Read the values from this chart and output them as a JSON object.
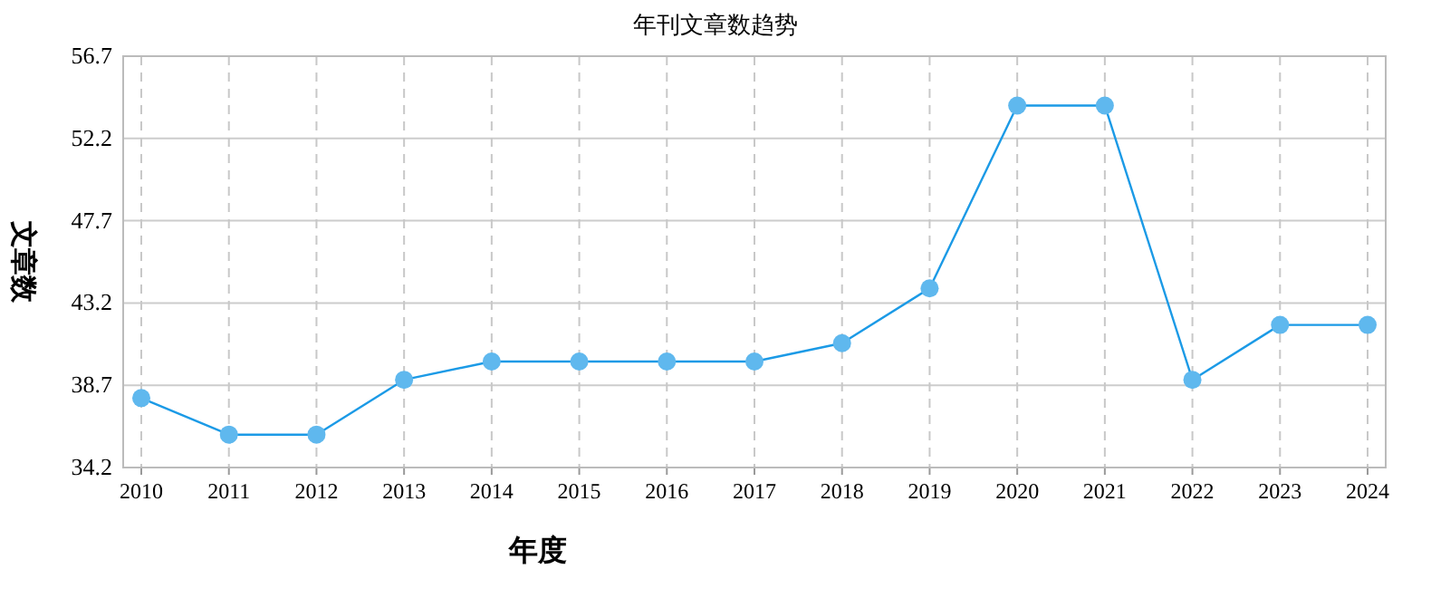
{
  "chart_data": {
    "type": "line",
    "title": "年刊文章数趋势",
    "xlabel": "年度",
    "ylabel": "文章数",
    "categories": [
      "2010",
      "2011",
      "2012",
      "2013",
      "2014",
      "2015",
      "2016",
      "2017",
      "2018",
      "2019",
      "2020",
      "2021",
      "2022",
      "2023",
      "2024"
    ],
    "series": [
      {
        "color": "#1b9ae6",
        "values": [
          38,
          36,
          36,
          39,
          40,
          40,
          40,
          40,
          41,
          44,
          54,
          54,
          39,
          42,
          42
        ]
      }
    ],
    "ylim": [
      34.2,
      56.7
    ],
    "yticks": [
      34.2,
      38.7,
      43.2,
      47.7,
      52.2,
      56.7
    ],
    "grid": true,
    "marker": "circle",
    "line_style": "solid"
  }
}
